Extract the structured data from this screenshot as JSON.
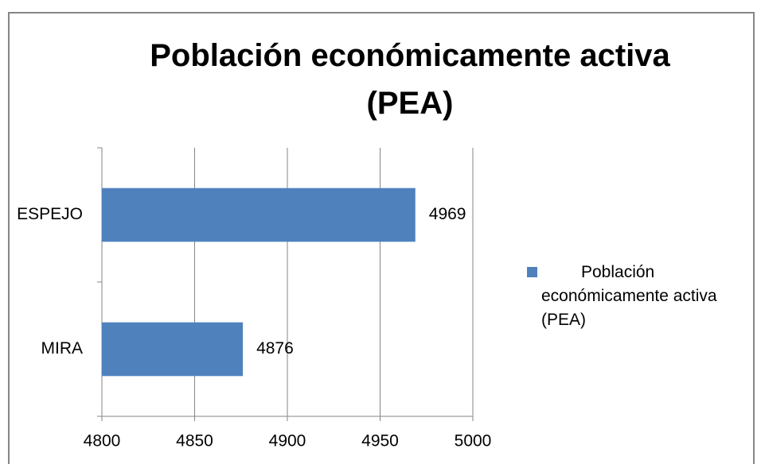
{
  "chart_data": {
    "type": "bar",
    "orientation": "horizontal",
    "title": "Población económicamente activa (PEA)",
    "categories": [
      "ESPEJO",
      "MIRA"
    ],
    "series": [
      {
        "name": "Población económicamente activa (PEA)",
        "color": "#4f81bd",
        "values": [
          4969,
          4876
        ]
      }
    ],
    "xlim": [
      4800,
      5000
    ],
    "xticks": [
      4800,
      4850,
      4900,
      4950,
      5000
    ],
    "grid": true,
    "legend": "right"
  }
}
